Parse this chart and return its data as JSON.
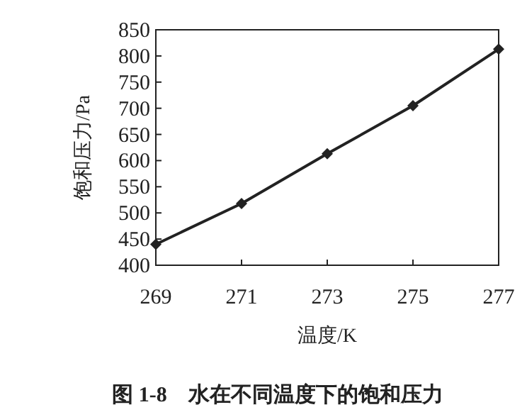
{
  "chart_data": {
    "type": "line",
    "title": "图 1-8　水在不同温度下的饱和压力",
    "xlabel": "温度/K",
    "ylabel": "饱和压力/Pa",
    "x": [
      269,
      271,
      273,
      275,
      277
    ],
    "series": [
      {
        "color": "#222222",
        "values": [
          440,
          518,
          613,
          705,
          813
        ]
      }
    ],
    "xlim": [
      269,
      277
    ],
    "xticks": [
      269,
      271,
      273,
      275,
      277
    ],
    "ylim": [
      400,
      850
    ],
    "yticks": [
      400,
      450,
      500,
      550,
      600,
      650,
      700,
      750,
      800,
      850
    ],
    "marker": "diamond",
    "line_style": "solid",
    "grid": false
  }
}
